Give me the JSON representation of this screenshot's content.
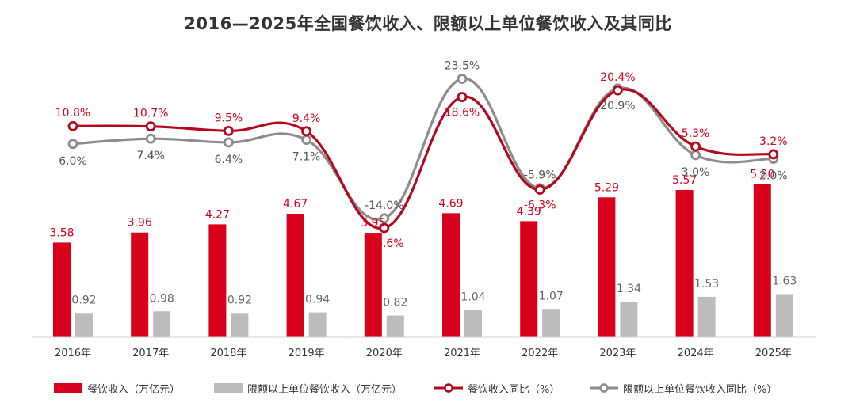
{
  "title": "2016—2025年全国餐饮收入、限额以上单位餐饮收入及其同比",
  "colors": {
    "red": "#d9001b",
    "gray": "#bcbcbc",
    "gray_line": "#8c8c8c",
    "text": "#333333"
  },
  "chart_data": {
    "type": "bar",
    "categories": [
      "2016年",
      "2017年",
      "2018年",
      "2019年",
      "2020年",
      "2021年",
      "2022年",
      "2023年",
      "2024年",
      "2025年"
    ],
    "series": [
      {
        "name": "餐饮收入（万亿元）",
        "type": "bar",
        "values": [
          3.58,
          3.96,
          4.27,
          4.67,
          3.95,
          4.69,
          4.39,
          5.29,
          5.57,
          5.8
        ],
        "labels": [
          "3.58",
          "3.96",
          "4.27",
          "4.67",
          "3.95",
          "4.69",
          "4.39",
          "5.29",
          "5.57",
          "5.80"
        ]
      },
      {
        "name": "限额以上单位餐饮收入（万亿元）",
        "type": "bar",
        "values": [
          0.92,
          0.98,
          0.92,
          0.94,
          0.82,
          1.04,
          1.07,
          1.34,
          1.53,
          1.63
        ],
        "labels": [
          "0.92",
          "0.98",
          "0.92",
          "0.94",
          "0.82",
          "1.04",
          "1.07",
          "1.34",
          "1.53",
          "1.63"
        ]
      },
      {
        "name": "餐饮收入同比（%）",
        "type": "line",
        "values": [
          10.8,
          10.7,
          9.5,
          9.4,
          -16.6,
          18.6,
          -6.3,
          20.4,
          5.3,
          3.2
        ],
        "labels": [
          "10.8%",
          "10.7%",
          "9.5%",
          "9.4%",
          "-16.6%",
          "18.6%",
          "-6.3%",
          "20.4%",
          "5.3%",
          "3.2%"
        ]
      },
      {
        "name": "限额以上单位餐饮收入同比（%）",
        "type": "line",
        "values": [
          6.0,
          7.4,
          6.4,
          7.1,
          -14.0,
          23.5,
          -5.9,
          20.9,
          3.0,
          2.0
        ],
        "labels": [
          "6.0%",
          "7.4%",
          "6.4%",
          "7.1%",
          "-14.0%",
          "23.5%",
          "-5.9%",
          "20.9%",
          "3.0%",
          "2.0%"
        ]
      }
    ],
    "grid": false,
    "legend_position": "bottom"
  }
}
